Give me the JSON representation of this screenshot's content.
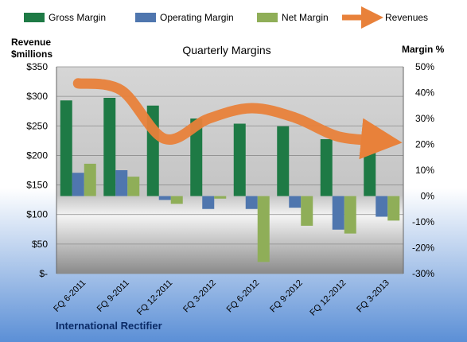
{
  "chart_data": {
    "type": "bar",
    "title": "Quarterly Margins",
    "company": "International Rectifier",
    "categories": [
      "FQ 6-2011",
      "FQ 9-2011",
      "FQ 12-2011",
      "FQ 3-2012",
      "FQ 6-2012",
      "FQ 9-2012",
      "FQ 12-2012",
      "FQ 3-2013"
    ],
    "y_left": {
      "label_line1": "Revenue",
      "label_line2": "$millions",
      "range": [
        0,
        350
      ],
      "ticks": [
        0,
        50,
        100,
        150,
        200,
        250,
        300,
        350
      ],
      "tick_labels": [
        "$-",
        "$50",
        "$100",
        "$150",
        "$200",
        "$250",
        "$300",
        "$350"
      ]
    },
    "y_right": {
      "label": "Margin %",
      "range": [
        -30,
        50
      ],
      "ticks": [
        -30,
        -20,
        -10,
        0,
        10,
        20,
        30,
        40,
        50
      ],
      "tick_labels": [
        "-30%",
        "-20%",
        "-10%",
        "0%",
        "10%",
        "20%",
        "30%",
        "40%",
        "50%"
      ]
    },
    "series": [
      {
        "name": "Gross Margin",
        "axis": "right",
        "color": "#1E7A45",
        "values": [
          37,
          38,
          35,
          30,
          28,
          27,
          22,
          25
        ]
      },
      {
        "name": "Operating Margin",
        "axis": "right",
        "color": "#4F76AE",
        "values": [
          9,
          10,
          -1.5,
          -5,
          -5,
          -4.5,
          -13,
          -8
        ]
      },
      {
        "name": "Net Margin",
        "axis": "right",
        "color": "#8FAE58",
        "values": [
          12.5,
          7.5,
          -3,
          -1,
          -25.5,
          -11.5,
          -14.5,
          -9.5
        ]
      },
      {
        "name": "Revenues",
        "axis": "left",
        "type": "line",
        "color": "#E8813A",
        "values": [
          322,
          310,
          228,
          262,
          280,
          264,
          232,
          225
        ]
      }
    ],
    "grid": true,
    "legend_position": "top"
  }
}
